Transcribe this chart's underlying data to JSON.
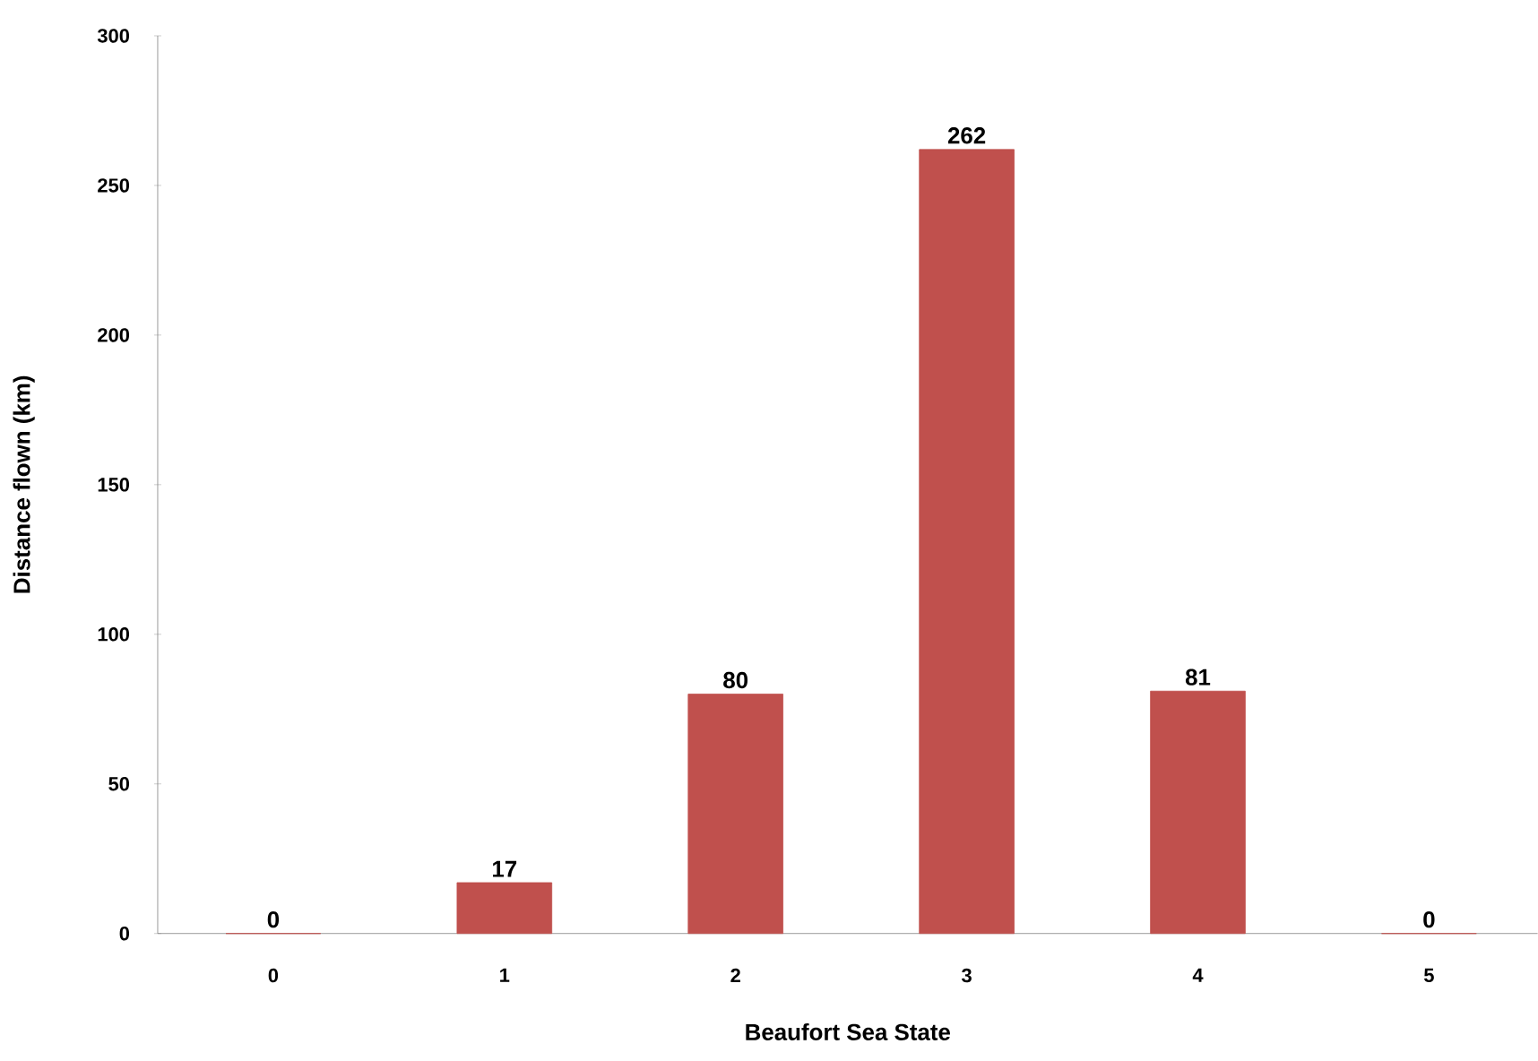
{
  "chart_data": {
    "type": "bar",
    "xlabel": "Beaufort Sea State",
    "ylabel": "Distance flown (km)",
    "categories": [
      "0",
      "1",
      "2",
      "3",
      "4",
      "5"
    ],
    "values": [
      0,
      17,
      80,
      262,
      81,
      0
    ],
    "color": "#c0504d",
    "ylim": [
      0,
      300
    ],
    "yticks": [
      0,
      50,
      100,
      150,
      200,
      250,
      300
    ],
    "data_labels": true
  }
}
